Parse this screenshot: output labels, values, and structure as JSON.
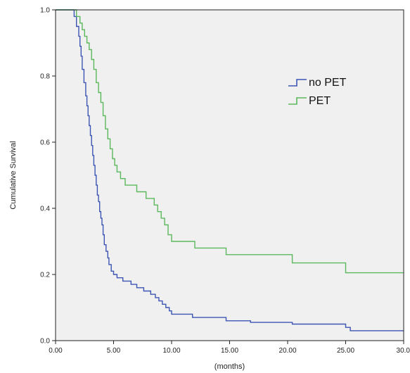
{
  "chart_data": {
    "type": "line",
    "xlabel": "(months)",
    "ylabel": "Cumulative Survival",
    "xlim": [
      0,
      30
    ],
    "ylim": [
      0,
      1
    ],
    "xticks": [
      "0.00",
      "5.00",
      "10.00",
      "15.00",
      "20.00",
      "25.00",
      "30.0"
    ],
    "yticks": [
      "0.0",
      "0.2",
      "0.4",
      "0.6",
      "0.8",
      "1.0"
    ],
    "xtick_values": [
      0,
      5,
      10,
      15,
      20,
      25,
      30
    ],
    "ytick_values": [
      0,
      0.2,
      0.4,
      0.6,
      0.8,
      1.0
    ],
    "grid": false,
    "background": "#f0f0f0",
    "legend_position": "top-right",
    "series": [
      {
        "name": "no PET",
        "color": "#3c55b4",
        "step": true,
        "points": [
          [
            0,
            1.0
          ],
          [
            1.6,
            0.98
          ],
          [
            1.8,
            0.95
          ],
          [
            2.0,
            0.92
          ],
          [
            2.1,
            0.89
          ],
          [
            2.2,
            0.86
          ],
          [
            2.3,
            0.82
          ],
          [
            2.45,
            0.78
          ],
          [
            2.6,
            0.74
          ],
          [
            2.7,
            0.71
          ],
          [
            2.8,
            0.68
          ],
          [
            2.9,
            0.65
          ],
          [
            3.0,
            0.62
          ],
          [
            3.1,
            0.59
          ],
          [
            3.2,
            0.56
          ],
          [
            3.3,
            0.53
          ],
          [
            3.4,
            0.5
          ],
          [
            3.5,
            0.47
          ],
          [
            3.6,
            0.44
          ],
          [
            3.7,
            0.42
          ],
          [
            3.8,
            0.39
          ],
          [
            3.9,
            0.37
          ],
          [
            4.0,
            0.35
          ],
          [
            4.1,
            0.32
          ],
          [
            4.2,
            0.29
          ],
          [
            4.35,
            0.27
          ],
          [
            4.5,
            0.25
          ],
          [
            4.6,
            0.23
          ],
          [
            4.8,
            0.21
          ],
          [
            5.0,
            0.2
          ],
          [
            5.3,
            0.19
          ],
          [
            5.8,
            0.18
          ],
          [
            6.5,
            0.17
          ],
          [
            7.0,
            0.16
          ],
          [
            7.6,
            0.15
          ],
          [
            8.2,
            0.14
          ],
          [
            8.6,
            0.13
          ],
          [
            8.9,
            0.12
          ],
          [
            9.2,
            0.11
          ],
          [
            9.5,
            0.1
          ],
          [
            9.8,
            0.09
          ],
          [
            10.0,
            0.08
          ],
          [
            11.8,
            0.07
          ],
          [
            14.7,
            0.06
          ],
          [
            16.8,
            0.055
          ],
          [
            20.4,
            0.05
          ],
          [
            25.0,
            0.04
          ],
          [
            25.4,
            0.03
          ],
          [
            30.0,
            0.03
          ]
        ]
      },
      {
        "name": "PET",
        "color": "#5cb85c",
        "step": true,
        "points": [
          [
            0,
            1.0
          ],
          [
            1.8,
            0.98
          ],
          [
            2.1,
            0.96
          ],
          [
            2.3,
            0.94
          ],
          [
            2.5,
            0.92
          ],
          [
            2.7,
            0.9
          ],
          [
            2.9,
            0.88
          ],
          [
            3.1,
            0.85
          ],
          [
            3.3,
            0.82
          ],
          [
            3.5,
            0.78
          ],
          [
            3.7,
            0.75
          ],
          [
            3.9,
            0.72
          ],
          [
            4.1,
            0.68
          ],
          [
            4.3,
            0.64
          ],
          [
            4.5,
            0.61
          ],
          [
            4.7,
            0.58
          ],
          [
            4.9,
            0.55
          ],
          [
            5.1,
            0.53
          ],
          [
            5.3,
            0.51
          ],
          [
            5.6,
            0.49
          ],
          [
            6.0,
            0.47
          ],
          [
            7.0,
            0.45
          ],
          [
            7.8,
            0.43
          ],
          [
            8.5,
            0.41
          ],
          [
            8.8,
            0.39
          ],
          [
            9.1,
            0.37
          ],
          [
            9.4,
            0.35
          ],
          [
            9.7,
            0.32
          ],
          [
            10.0,
            0.3
          ],
          [
            12.0,
            0.28
          ],
          [
            14.7,
            0.26
          ],
          [
            20.4,
            0.235
          ],
          [
            25.0,
            0.205
          ],
          [
            30.0,
            0.205
          ]
        ]
      }
    ]
  }
}
